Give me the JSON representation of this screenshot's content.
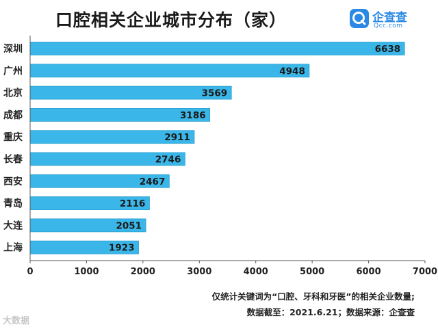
{
  "title": "口腔相关企业城市分布（家）",
  "logo": {
    "name": "企查查",
    "sub": "Qcc.com"
  },
  "notes": {
    "line1": "仅统计关键词为“口腔、牙科和牙医”的相关企业数量;",
    "line2": "数据截至：2021.6.21；数据来源：企查查"
  },
  "watermark": "大数据",
  "colors": {
    "bar": "#3bb6e8",
    "bar_stroke": "#2a9fd0",
    "axis": "#555555",
    "logo": "#2b89e6"
  },
  "chart_data": {
    "type": "bar",
    "orientation": "horizontal",
    "categories": [
      "深圳",
      "广州",
      "北京",
      "成都",
      "重庆",
      "长春",
      "西安",
      "青岛",
      "大连",
      "上海"
    ],
    "values": [
      6638,
      4948,
      3569,
      3186,
      2911,
      2746,
      2467,
      2116,
      2051,
      1923
    ],
    "xlim": [
      0,
      7000
    ],
    "xticks": [
      0,
      1000,
      2000,
      3000,
      4000,
      5000,
      6000,
      7000
    ],
    "grid": false
  }
}
